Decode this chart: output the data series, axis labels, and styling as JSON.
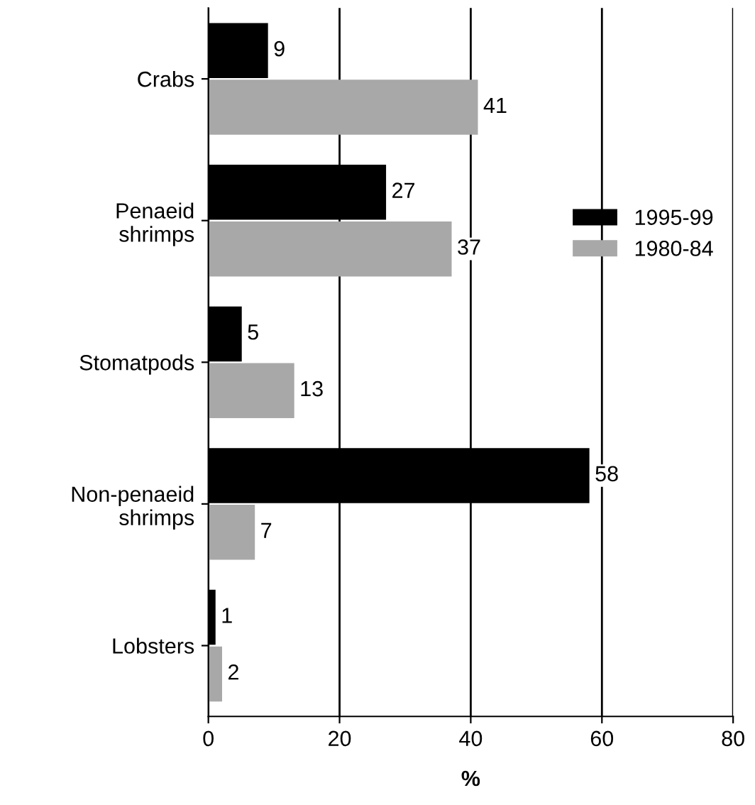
{
  "chart_data": {
    "type": "bar",
    "orientation": "horizontal",
    "categories": [
      "Crabs",
      "Penaeid\nshrimps",
      "Stomatpods",
      "Non-penaeid\nshrimps",
      "Lobsters"
    ],
    "series": [
      {
        "name": "1995-99",
        "color": "#000000",
        "values": [
          9,
          27,
          5,
          58,
          1
        ]
      },
      {
        "name": "1980-84",
        "color": "#a8a8a8",
        "values": [
          41,
          37,
          13,
          7,
          2
        ]
      }
    ],
    "xlabel": "%",
    "xlim": [
      0,
      80
    ],
    "xticks": [
      0,
      20,
      40,
      60,
      80
    ],
    "grid": "x",
    "legend": "right",
    "data_labels": true
  }
}
